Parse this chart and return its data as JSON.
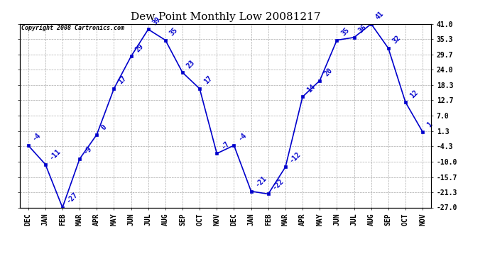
{
  "title": "Dew Point Monthly Low 20081217",
  "copyright": "Copyright 2008 Cartronics.com",
  "months": [
    "DEC",
    "JAN",
    "FEB",
    "MAR",
    "APR",
    "MAY",
    "JUN",
    "JUL",
    "AUG",
    "SEP",
    "OCT",
    "NOV",
    "DEC",
    "JAN",
    "FEB",
    "MAR",
    "APR",
    "MAY",
    "JUN",
    "JUL",
    "AUG",
    "SEP",
    "OCT",
    "NOV"
  ],
  "values": [
    -4,
    -11,
    -27,
    -9,
    0,
    17,
    29,
    39,
    35,
    23,
    17,
    -7,
    -4,
    -21,
    -22,
    -12,
    14,
    20,
    35,
    36,
    41,
    32,
    12,
    1
  ],
  "yticks_vals": [
    -27.0,
    -21.3,
    -15.7,
    -10.0,
    -4.3,
    1.3,
    7.0,
    12.7,
    18.3,
    24.0,
    29.7,
    35.3,
    41.0
  ],
  "ytick_labels_right": [
    "-27.0",
    "-21.3",
    "-15.7",
    "-10.0",
    "-4.3",
    "1.3",
    "7.0",
    "12.7",
    "18.3",
    "24.0",
    "29.7",
    "35.3",
    "41.0"
  ],
  "line_color": "#0000cc",
  "marker_color": "#0000cc",
  "bg_color": "#ffffff",
  "grid_color": "#aaaaaa",
  "title_fontsize": 11,
  "tick_fontsize": 7,
  "annotation_fontsize": 7,
  "copyright_fontsize": 6,
  "ymin": -27.0,
  "ymax": 41.0
}
